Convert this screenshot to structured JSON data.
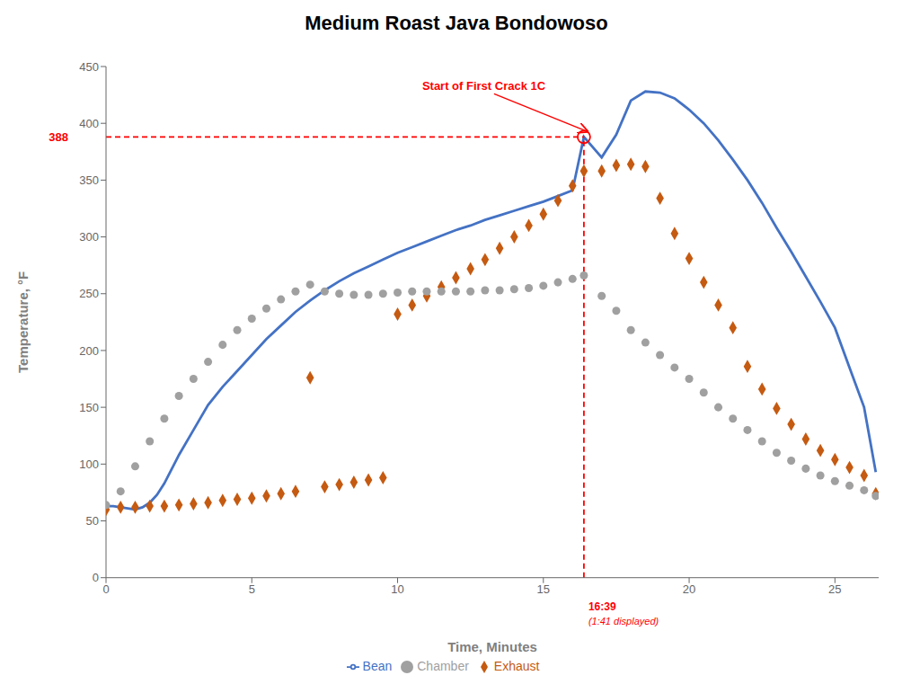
{
  "chart_data": {
    "type": "line",
    "title": "Medium Roast Java Bondowoso",
    "x_label": "Time, Minutes",
    "y_label": "Temperature, °F",
    "xlim": [
      0,
      26.5
    ],
    "ylim": [
      0,
      450
    ],
    "xticks": [
      0,
      5,
      10,
      15,
      20,
      25
    ],
    "yticks": [
      0,
      50,
      100,
      150,
      200,
      250,
      300,
      350,
      400,
      450
    ],
    "grid": false,
    "legend": "bottom",
    "series": [
      {
        "name": "Bean",
        "type": "line",
        "color": "#4472C4",
        "x": [
          0,
          0.25,
          0.5,
          0.75,
          1.0,
          1.25,
          1.5,
          1.75,
          2.0,
          2.5,
          3.0,
          3.5,
          4.0,
          4.5,
          5.0,
          5.5,
          6.0,
          6.5,
          7.0,
          7.5,
          8.0,
          8.5,
          9.0,
          9.5,
          10.0,
          10.5,
          11.0,
          11.5,
          12.0,
          12.5,
          13.0,
          13.5,
          14.0,
          14.5,
          15.0,
          15.5,
          16.0,
          16.39,
          17.0,
          17.5,
          18.0,
          18.5,
          19.0,
          19.5,
          20.0,
          20.5,
          21.0,
          21.5,
          22.0,
          22.5,
          23.0,
          23.5,
          24.0,
          24.5,
          25.0,
          25.5,
          26.0,
          26.4
        ],
        "values": [
          63,
          63,
          62,
          61,
          60,
          62,
          66,
          73,
          83,
          108,
          130,
          152,
          168,
          182,
          196,
          210,
          222,
          234,
          244,
          253,
          261,
          268,
          274,
          280,
          286,
          291,
          296,
          301,
          306,
          310,
          315,
          319,
          323,
          327,
          331,
          336,
          341,
          388,
          370,
          390,
          420,
          428,
          427,
          422,
          412,
          400,
          385,
          368,
          350,
          330,
          308,
          287,
          265,
          243,
          220,
          185,
          150,
          93
        ]
      },
      {
        "name": "Exhaust",
        "type": "scatter",
        "marker": "diamond",
        "color": "#C55A11",
        "x": [
          0,
          0.5,
          1.0,
          1.5,
          2.0,
          2.5,
          3.0,
          3.5,
          4.0,
          4.5,
          5.0,
          5.5,
          6.0,
          6.5,
          7.0,
          7.5,
          8.0,
          8.5,
          9.0,
          9.5,
          10.0,
          10.5,
          11.0,
          11.5,
          12.0,
          12.5,
          13.0,
          13.5,
          14.0,
          14.5,
          15.0,
          15.5,
          16.0,
          16.39,
          17.0,
          17.5,
          18.0,
          18.5,
          19.0,
          19.5,
          20.0,
          20.5,
          21.0,
          21.5,
          22.0,
          22.5,
          23.0,
          23.5,
          24.0,
          24.5,
          25.0,
          25.5,
          26.0,
          26.4
        ],
        "values": [
          60,
          62,
          62,
          63,
          63,
          64,
          65,
          66,
          68,
          69,
          70,
          72,
          74,
          76,
          176,
          80,
          82,
          84,
          86,
          88,
          232,
          240,
          248,
          256,
          264,
          272,
          280,
          290,
          300,
          310,
          320,
          332,
          345,
          358,
          358,
          363,
          364,
          362,
          334,
          303,
          281,
          260,
          240,
          220,
          186,
          166,
          149,
          135,
          122,
          112,
          104,
          97,
          90,
          74
        ]
      },
      {
        "name": "Chamber",
        "type": "scatter",
        "marker": "circle",
        "color": "#A0A0A0",
        "x": [
          0,
          0.5,
          1.0,
          1.5,
          2.0,
          2.5,
          3.0,
          3.5,
          4.0,
          4.5,
          5.0,
          5.5,
          6.0,
          6.5,
          7.0,
          7.5,
          8.0,
          8.5,
          9.0,
          9.5,
          10.0,
          10.5,
          11.0,
          11.5,
          12.0,
          12.5,
          13.0,
          13.5,
          14.0,
          14.5,
          15.0,
          15.5,
          16.0,
          16.39,
          17.0,
          17.5,
          18.0,
          18.5,
          19.0,
          19.5,
          20.0,
          20.5,
          21.0,
          21.5,
          22.0,
          22.5,
          23.0,
          23.5,
          24.0,
          24.5,
          25.0,
          25.5,
          26.0,
          26.4
        ],
        "values": [
          64,
          76,
          98,
          120,
          140,
          160,
          175,
          190,
          205,
          218,
          228,
          237,
          245,
          252,
          258,
          252,
          250,
          249,
          249,
          250,
          251,
          252,
          252,
          252,
          252,
          252,
          253,
          253,
          254,
          255,
          257,
          260,
          263,
          266,
          248,
          235,
          218,
          207,
          196,
          185,
          175,
          163,
          150,
          140,
          130,
          120,
          110,
          103,
          96,
          90,
          85,
          81,
          77,
          72
        ]
      }
    ],
    "annotations": [
      {
        "x": 16.39,
        "y": 388,
        "color": "#FF0000",
        "line_style": "dashed",
        "text": "Start of First Crack 1C",
        "y_label": "388",
        "x_label": "16:39",
        "x_sublabel": "(1:41 displayed)"
      }
    ]
  }
}
